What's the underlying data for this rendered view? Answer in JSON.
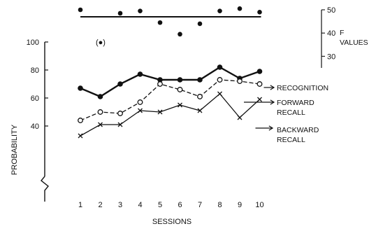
{
  "chart_data": {
    "type": "line",
    "x": [
      1,
      2,
      3,
      4,
      5,
      6,
      7,
      8,
      9,
      10
    ],
    "xticks": [
      "1",
      "2",
      "3",
      "4",
      "5",
      "6",
      "7",
      "8",
      "9",
      "10"
    ],
    "xlabel": "SESSIONS",
    "ylabel": "PROBABILITY",
    "ylim": [
      20,
      100
    ],
    "yticks": [
      "100",
      "80",
      "60",
      "40"
    ],
    "axis_break": true,
    "grid": false,
    "series": [
      {
        "name": "RECOGNITION",
        "marker": "filled-circle",
        "line": "solid",
        "values": [
          67,
          61,
          70,
          77,
          73,
          73,
          73,
          82,
          74,
          79
        ]
      },
      {
        "name_lines": [
          "FORWARD",
          "RECALL"
        ],
        "marker": "open-circle",
        "line": "dashed",
        "values": [
          44,
          50,
          49,
          57,
          70,
          66,
          61,
          73,
          72,
          70
        ]
      },
      {
        "name_lines": [
          "BACKWARD",
          "RECALL"
        ],
        "marker": "x",
        "line": "solid",
        "values": [
          33,
          41,
          41,
          51,
          50,
          55,
          51,
          63,
          46,
          59
        ]
      }
    ],
    "annotation_text": "(●)",
    "f_values": {
      "label_lines": [
        "F",
        "VALUES"
      ],
      "ylim": [
        25,
        50
      ],
      "yticks": [
        "50",
        "40",
        "30"
      ],
      "reference": 47,
      "values": [
        50,
        48.5,
        49.5,
        44.5,
        39.5,
        44,
        49.5,
        50.5,
        49
      ]
    }
  }
}
